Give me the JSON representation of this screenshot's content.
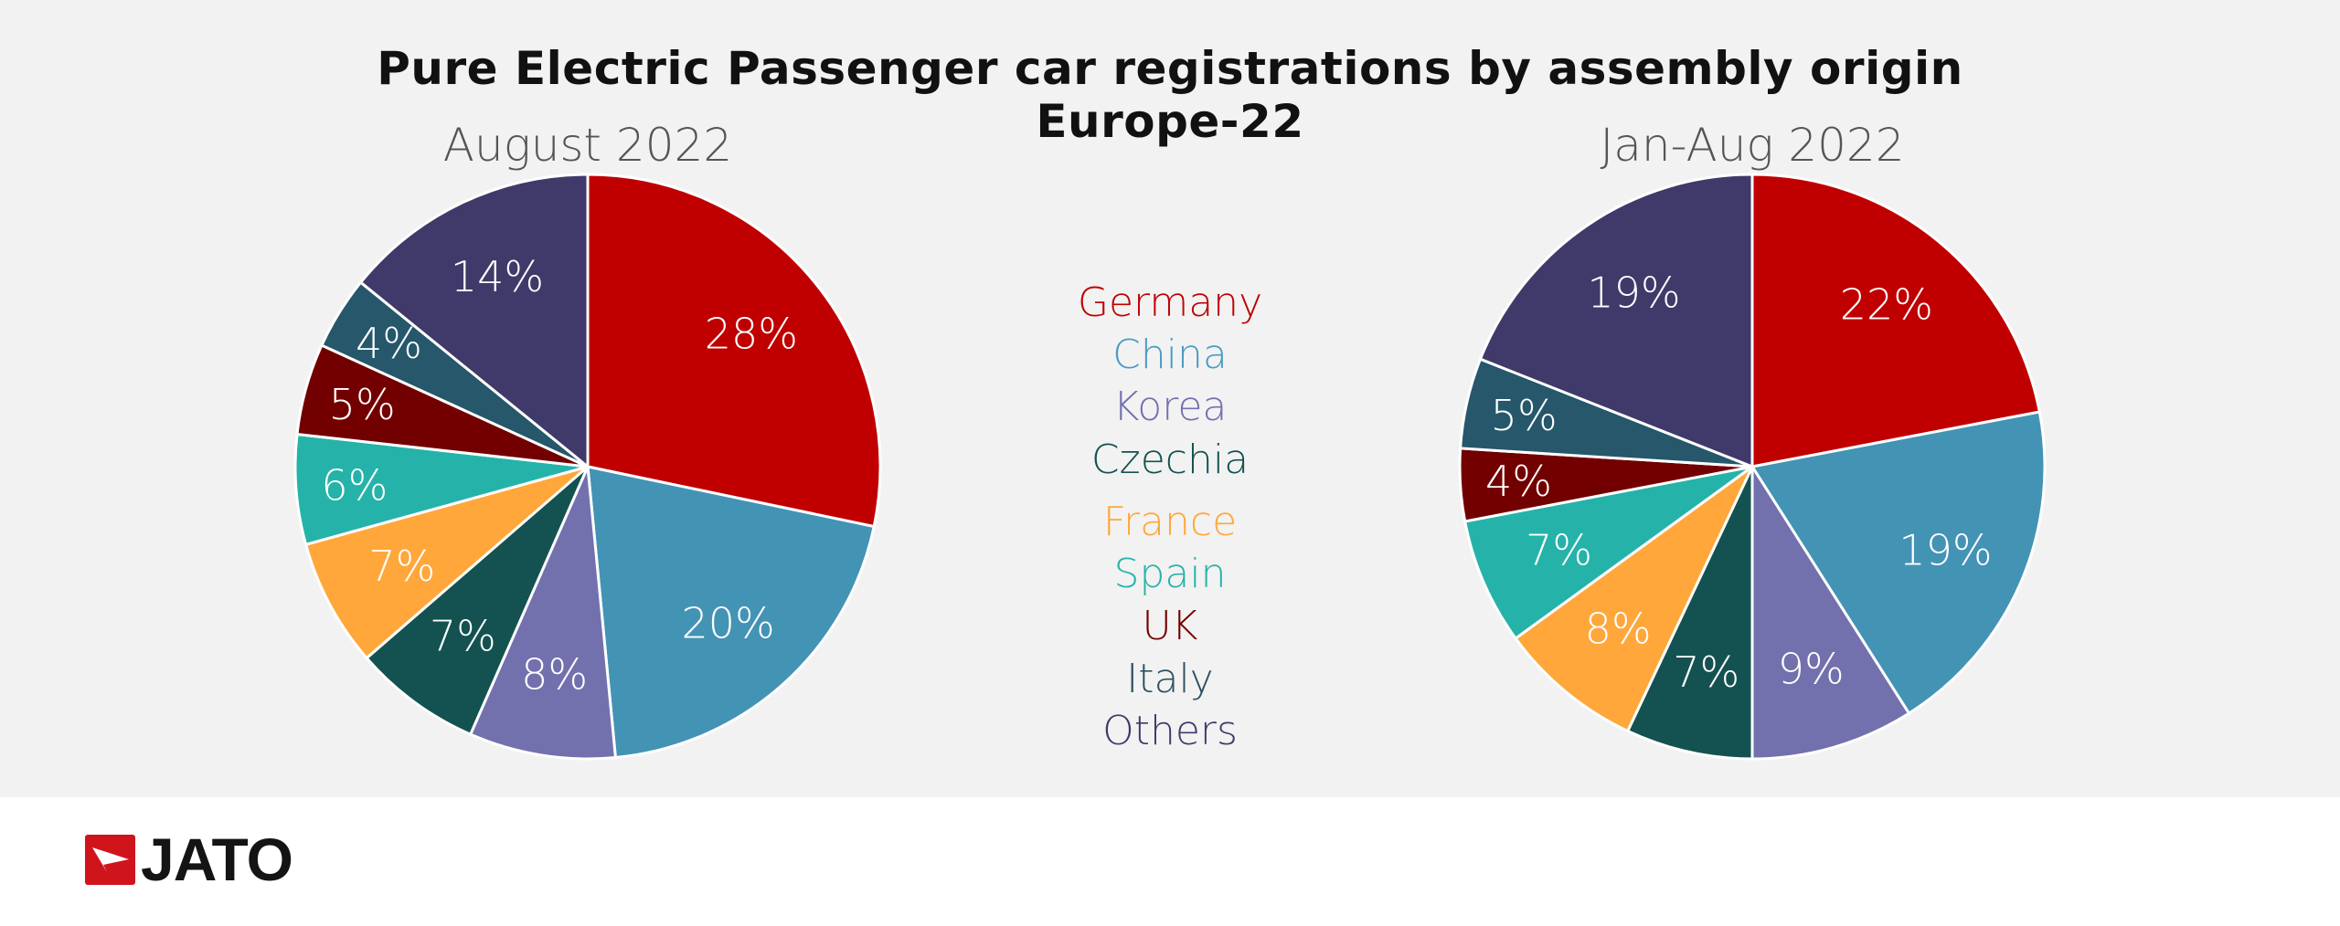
{
  "title": "Pure Electric Passenger car registrations by assembly origin",
  "subtitle": "Europe-22",
  "logo": {
    "text": "JATO",
    "color": "#d0141b"
  },
  "chart_data": [
    {
      "type": "pie",
      "title": "August 2022",
      "categories": [
        "Germany",
        "China",
        "Korea",
        "Czechia",
        "France",
        "Spain",
        "UK",
        "Italy",
        "Others"
      ],
      "values": [
        28,
        20,
        8,
        7,
        7,
        6,
        5,
        4,
        14
      ],
      "labels": [
        "28%",
        "20%",
        "8%",
        "7%",
        "7%",
        "6%",
        "5%",
        "4%",
        "14%"
      ],
      "start": "12 o'clock, clockwise"
    },
    {
      "type": "pie",
      "title": "Jan-Aug 2022",
      "categories": [
        "Germany",
        "China",
        "Korea",
        "Czechia",
        "France",
        "Spain",
        "UK",
        "Italy",
        "Others"
      ],
      "values": [
        22,
        19,
        9,
        7,
        8,
        7,
        4,
        5,
        19
      ],
      "labels": [
        "22%",
        "19%",
        "9%",
        "7%",
        "8%",
        "7%",
        "4%",
        "5%",
        "19%"
      ],
      "start": "12 o'clock, clockwise"
    }
  ],
  "legend": {
    "placement": "center",
    "items": [
      {
        "label": "Germany",
        "color": "#C00000",
        "text_color": "#C00000"
      },
      {
        "label": "China",
        "color": "#4393B5",
        "text_color": "#4A9BC0"
      },
      {
        "label": "Korea",
        "color": "#7370AE",
        "text_color": "#7370AE"
      },
      {
        "label": "Czechia",
        "color": "#135250",
        "text_color": "#135250"
      },
      {
        "label": "France",
        "color": "#FFA73B",
        "text_color": "#FFA73B"
      },
      {
        "label": "Spain",
        "color": "#25B3A9",
        "text_color": "#25B3A9"
      },
      {
        "label": "UK",
        "color": "#730000",
        "text_color": "#730000"
      },
      {
        "label": "Italy",
        "color": "#26576B",
        "text_color": "#2E5060"
      },
      {
        "label": "Others",
        "color": "#3F3A69",
        "text_color": "#3F3A69"
      }
    ]
  }
}
